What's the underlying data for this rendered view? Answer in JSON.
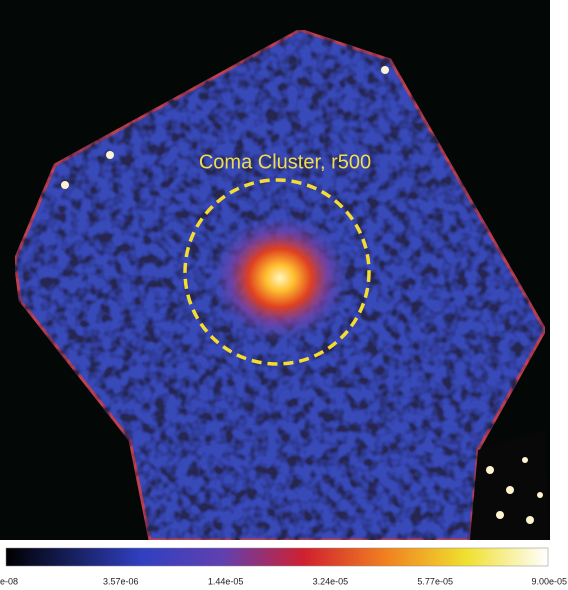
{
  "image": {
    "annotation": "Coma Cluster, r500"
  },
  "colorbar": {
    "ticks": [
      "e-08",
      "3.57e-06",
      "1.44e-05",
      "3.24e-05",
      "5.77e-05",
      "9.00e-05"
    ]
  }
}
